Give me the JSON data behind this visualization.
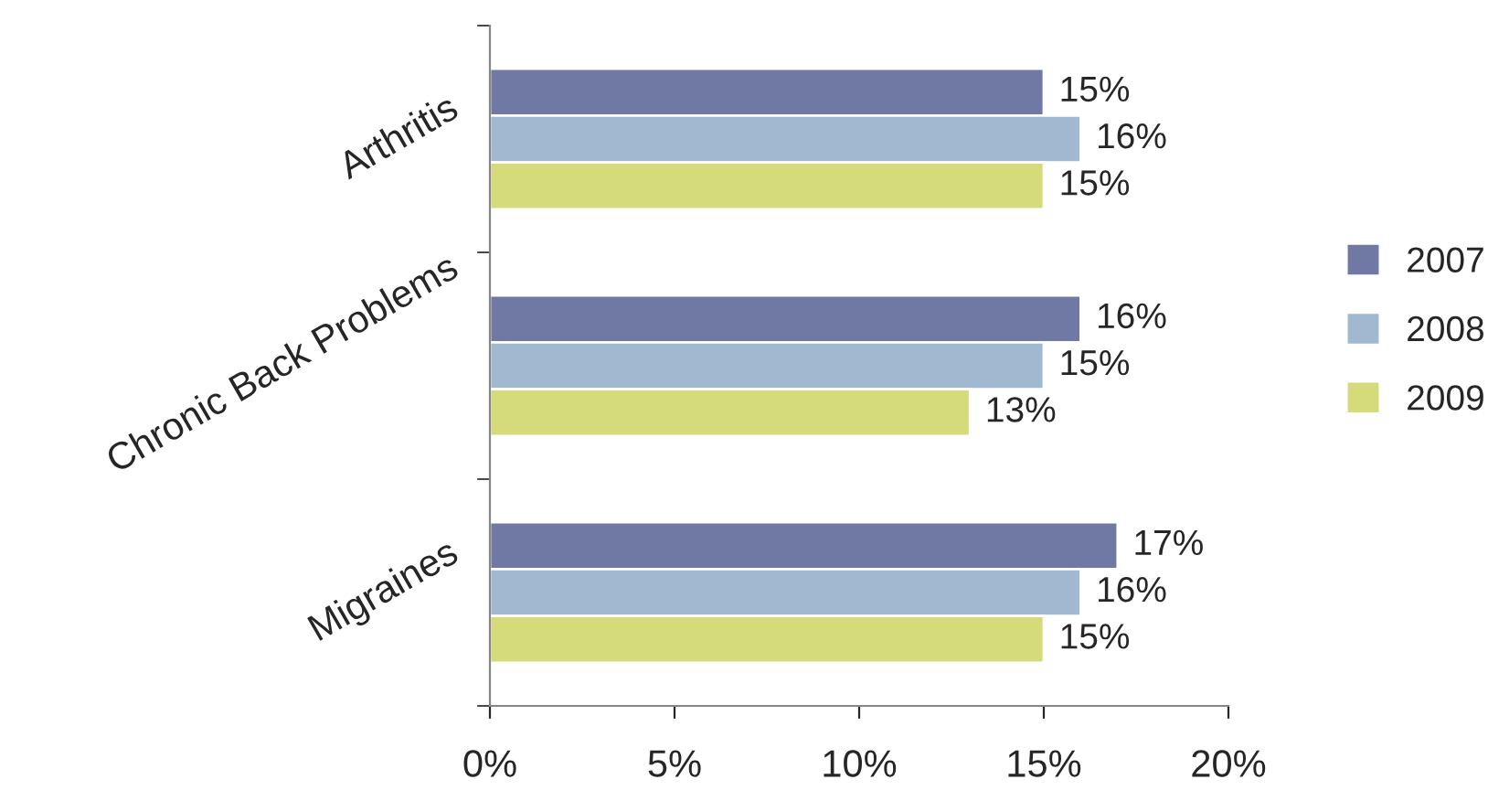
{
  "chart_data": {
    "type": "bar",
    "orientation": "horizontal",
    "categories": [
      "Arthritis",
      "Chronic Back Problems",
      "Migraines"
    ],
    "series": [
      {
        "name": "2007",
        "color": "#7079a3",
        "values": [
          15,
          16,
          17
        ],
        "value_labels": [
          "15%",
          "16%",
          "17%"
        ]
      },
      {
        "name": "2008",
        "color": "#a0b8d0",
        "values": [
          16,
          15,
          16
        ],
        "value_labels": [
          "16%",
          "15%",
          "16%"
        ]
      },
      {
        "name": "2009",
        "color": "#d5db7a",
        "values": [
          15,
          13,
          15
        ],
        "value_labels": [
          "15%",
          "13%",
          "15%"
        ]
      }
    ],
    "xlim": [
      0,
      20
    ],
    "xticks": [
      {
        "value": 0,
        "label": "0%"
      },
      {
        "value": 5,
        "label": "5%"
      },
      {
        "value": 10,
        "label": "10%"
      },
      {
        "value": 15,
        "label": "15%"
      },
      {
        "value": 20,
        "label": "20%"
      }
    ],
    "grid": false,
    "legend": "right"
  }
}
